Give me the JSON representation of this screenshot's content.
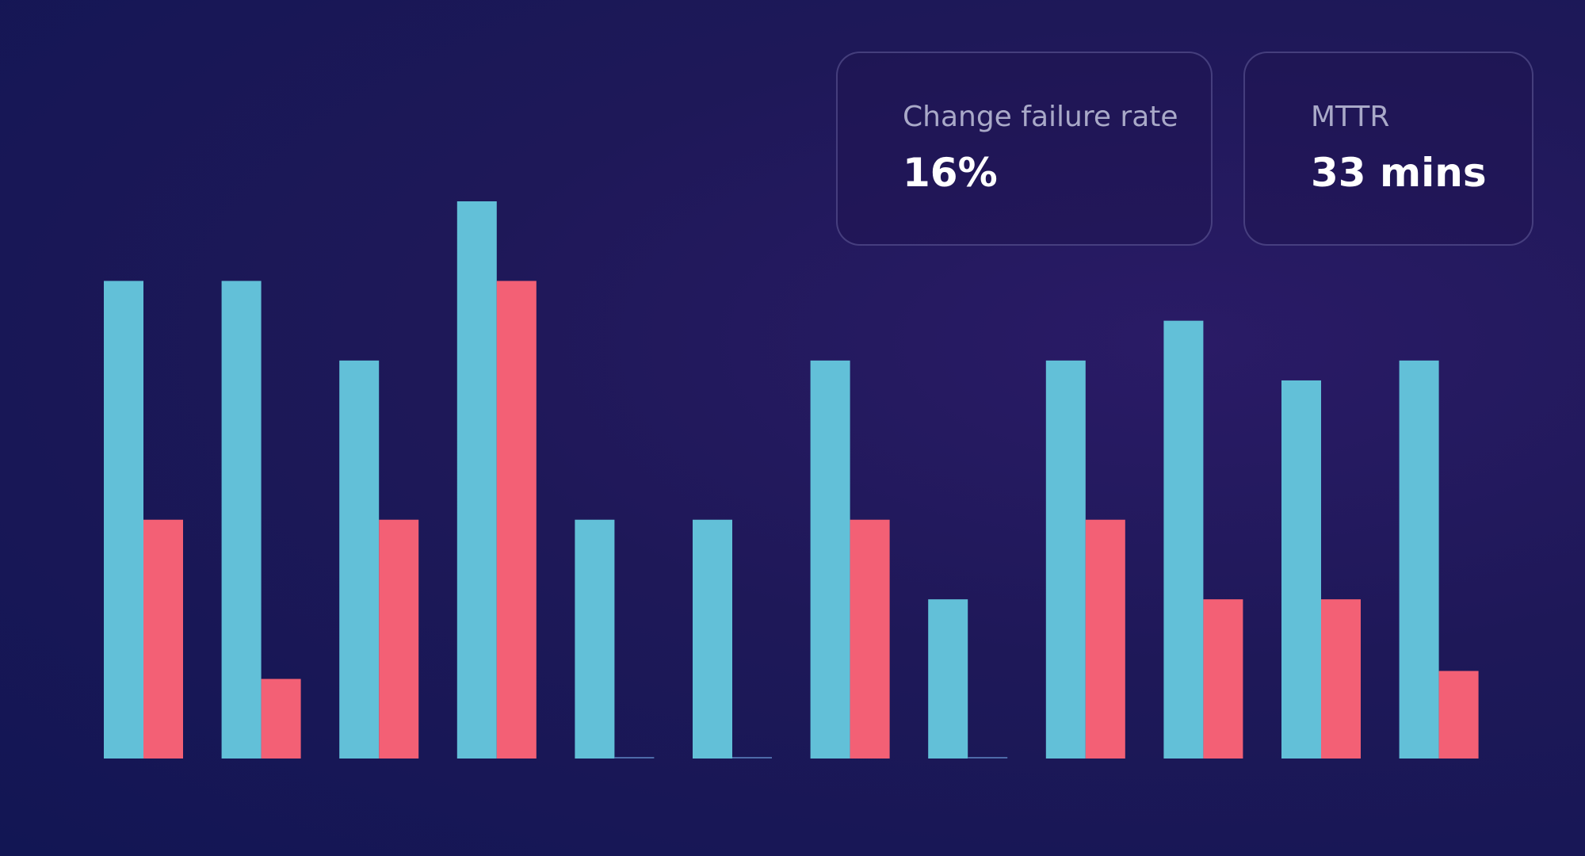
{
  "cards": [
    {
      "label": "Change failure rate",
      "value": "16%"
    },
    {
      "label": "MTTR",
      "value": "33 mins"
    }
  ],
  "chart_data": {
    "type": "bar",
    "categories": [
      null,
      null,
      null,
      null,
      null,
      null,
      null,
      null,
      null,
      null,
      null,
      null
    ],
    "series": [
      {
        "color": "#62c0d8",
        "values": [
          6,
          6,
          5,
          7,
          3,
          3,
          5,
          2,
          5,
          5.5,
          4.75,
          5
        ]
      },
      {
        "color": "#f36075",
        "values": [
          3,
          1,
          3,
          6,
          0,
          0,
          3,
          0,
          3,
          2,
          2,
          1.1
        ]
      }
    ],
    "ylim": [
      0,
      7
    ]
  }
}
